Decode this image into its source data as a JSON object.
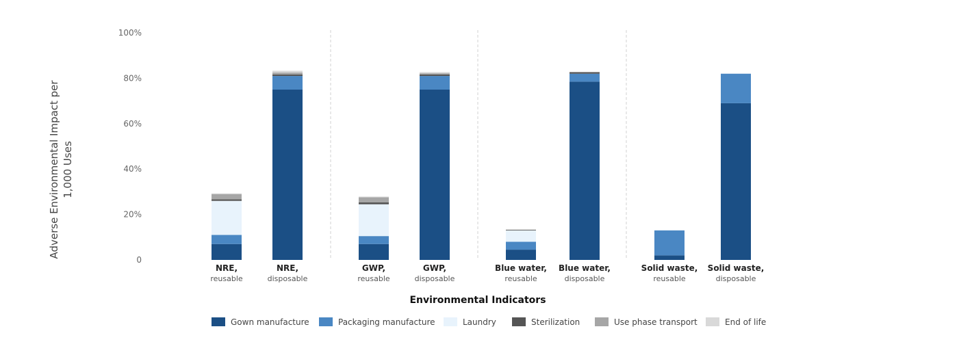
{
  "chart_data": {
    "type": "bar",
    "stacked": true,
    "xlabel": "Environmental Indicators",
    "ylabel_lines": [
      "Adverse Environmental Impact per",
      "1,000 Uses"
    ],
    "ylim": [
      0,
      100
    ],
    "yticks": [
      {
        "value": 0,
        "label": "0"
      },
      {
        "value": 20,
        "label": "20%"
      },
      {
        "value": 40,
        "label": "40%"
      },
      {
        "value": 60,
        "label": "60%"
      },
      {
        "value": 80,
        "label": "80%"
      },
      {
        "value": 100,
        "label": "100%"
      }
    ],
    "categories": [
      {
        "main": "NRE,",
        "sub": "reusable"
      },
      {
        "main": "NRE,",
        "sub": "disposable"
      },
      {
        "main": "GWP,",
        "sub": "reusable"
      },
      {
        "main": "GWP,",
        "sub": "disposable"
      },
      {
        "main": "Blue water,",
        "sub": "reusable"
      },
      {
        "main": "Blue water,",
        "sub": "disposable"
      },
      {
        "main": "Solid waste,",
        "sub": "reusable"
      },
      {
        "main": "Solid waste,",
        "sub": "disposable"
      }
    ],
    "series": [
      {
        "name": "Gown manufacture",
        "color": "#1b4f85",
        "values": [
          7,
          75,
          7,
          75,
          4.5,
          78.5,
          2,
          69
        ]
      },
      {
        "name": "Packaging manufacture",
        "color": "#4a87c3",
        "values": [
          4,
          6,
          3.5,
          6,
          3.5,
          3.5,
          11,
          13
        ]
      },
      {
        "name": "Laundry",
        "color": "#e8f3fc",
        "values": [
          15,
          0,
          14,
          0,
          5,
          0,
          0,
          0
        ]
      },
      {
        "name": "Sterilization",
        "color": "#555555",
        "values": [
          0.7,
          0.7,
          0.8,
          0.7,
          0.3,
          0.7,
          0,
          0
        ]
      },
      {
        "name": "Use phase transport",
        "color": "#a6a6a6",
        "values": [
          2.3,
          0.8,
          2.3,
          0.5,
          0,
          0,
          0,
          0
        ]
      },
      {
        "name": "End of life",
        "color": "#d9d9d9",
        "values": [
          0.3,
          0.8,
          0.3,
          0.5,
          0,
          0,
          0,
          0
        ]
      }
    ],
    "grid": false,
    "legend_position": "bottom"
  }
}
